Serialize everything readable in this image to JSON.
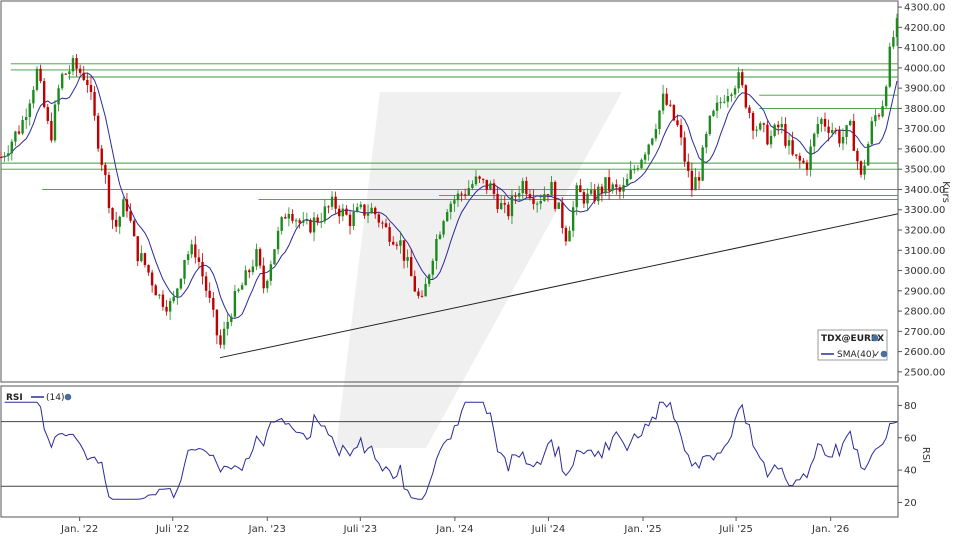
{
  "chart_data": [
    {
      "type": "candlestick",
      "instrument": "TDX@EUREX",
      "ylabel": "Kurs",
      "ylim": [
        2450,
        4330
      ],
      "y_ticks": [
        2500,
        2600,
        2700,
        2800,
        2900,
        3000,
        3100,
        3200,
        3300,
        3400,
        3500,
        3600,
        3700,
        3800,
        3900,
        4000,
        4100,
        4200,
        4300
      ],
      "y_tick_labels": [
        "2500.00",
        "2600.00",
        "2700.00",
        "2800.00",
        "2900.00",
        "3000.00",
        "3100.00",
        "3200.00",
        "3300.00",
        "3400.00",
        "3500.00",
        "3600.00",
        "3700.00",
        "3800.00",
        "3900.00",
        "4000.00",
        "4100.00",
        "4200.00",
        "4300.00"
      ],
      "x_range": [
        "2021-08-01",
        "2026-05-12"
      ],
      "x_ticks": [
        {
          "date": "2022-01-01",
          "label": "Jan. '22"
        },
        {
          "date": "2022-07-01",
          "label": "Juli '22"
        },
        {
          "date": "2023-01-01",
          "label": "Jan. '23"
        },
        {
          "date": "2023-07-01",
          "label": "Juli '23"
        },
        {
          "date": "2024-01-01",
          "label": "Jan. '24"
        },
        {
          "date": "2024-07-01",
          "label": "Juli '24"
        },
        {
          "date": "2025-01-01",
          "label": "Jan. '25"
        },
        {
          "date": "2025-07-01",
          "label": "Juli '25"
        },
        {
          "date": "2026-01-01",
          "label": "Jan. '26"
        }
      ],
      "legend": [
        {
          "name": "TDX@EUREX",
          "color": "#c00000"
        },
        {
          "name": "SMA(40)",
          "color": "#2b2b9a"
        }
      ],
      "legend_position": "bottom-right",
      "price_path": [
        [
          "2021-08-01",
          3560
        ],
        [
          "2021-09-10",
          3720
        ],
        [
          "2021-10-10",
          3980
        ],
        [
          "2021-11-05",
          3650
        ],
        [
          "2021-11-25",
          3950
        ],
        [
          "2021-12-20",
          4010
        ],
        [
          "2022-01-15",
          3950
        ],
        [
          "2022-02-20",
          3450
        ],
        [
          "2022-03-10",
          3200
        ],
        [
          "2022-04-01",
          3350
        ],
        [
          "2022-04-20",
          3100
        ],
        [
          "2022-05-10",
          3020
        ],
        [
          "2022-06-05",
          2870
        ],
        [
          "2022-06-30",
          2820
        ],
        [
          "2022-07-25",
          3080
        ],
        [
          "2022-08-15",
          3100
        ],
        [
          "2022-09-10",
          2850
        ],
        [
          "2022-10-01",
          2620
        ],
        [
          "2022-10-25",
          2830
        ],
        [
          "2022-11-20",
          2960
        ],
        [
          "2022-12-10",
          3080
        ],
        [
          "2022-12-25",
          2920
        ],
        [
          "2023-01-15",
          3120
        ],
        [
          "2023-02-10",
          3320
        ],
        [
          "2023-03-15",
          3200
        ],
        [
          "2023-04-10",
          3260
        ],
        [
          "2023-05-10",
          3330
        ],
        [
          "2023-06-10",
          3250
        ],
        [
          "2023-06-30",
          3290
        ],
        [
          "2023-07-25",
          3300
        ],
        [
          "2023-08-20",
          3200
        ],
        [
          "2023-09-15",
          3150
        ],
        [
          "2023-10-10",
          2950
        ],
        [
          "2023-10-28",
          2820
        ],
        [
          "2023-11-20",
          3100
        ],
        [
          "2023-12-15",
          3320
        ],
        [
          "2024-01-10",
          3370
        ],
        [
          "2024-02-10",
          3440
        ],
        [
          "2024-03-10",
          3410
        ],
        [
          "2024-04-10",
          3270
        ],
        [
          "2024-05-10",
          3440
        ],
        [
          "2024-06-10",
          3350
        ],
        [
          "2024-07-05",
          3420
        ],
        [
          "2024-08-05",
          3170
        ],
        [
          "2024-08-25",
          3380
        ],
        [
          "2024-09-20",
          3350
        ],
        [
          "2024-10-20",
          3420
        ],
        [
          "2024-11-20",
          3380
        ],
        [
          "2024-12-10",
          3480
        ],
        [
          "2025-01-15",
          3650
        ],
        [
          "2025-02-10",
          3850
        ],
        [
          "2025-03-10",
          3700
        ],
        [
          "2025-04-05",
          3400
        ],
        [
          "2025-04-20",
          3480
        ],
        [
          "2025-05-10",
          3720
        ],
        [
          "2025-06-10",
          3880
        ],
        [
          "2025-07-05",
          3950
        ],
        [
          "2025-08-05",
          3720
        ],
        [
          "2025-09-05",
          3650
        ],
        [
          "2025-09-25",
          3720
        ],
        [
          "2025-10-20",
          3550
        ],
        [
          "2025-11-15",
          3520
        ],
        [
          "2025-12-10",
          3750
        ],
        [
          "2026-01-05",
          3700
        ],
        [
          "2026-01-20",
          3650
        ],
        [
          "2026-02-10",
          3700
        ],
        [
          "2026-03-01",
          3450
        ],
        [
          "2026-03-25",
          3750
        ],
        [
          "2026-04-10",
          3800
        ],
        [
          "2026-04-25",
          4050
        ],
        [
          "2026-05-05",
          4180
        ],
        [
          "2026-05-12",
          4210
        ]
      ],
      "horizontal_lines": [
        {
          "value": 4020,
          "from": "2021-08-20"
        },
        {
          "value": 3990,
          "from": "2021-08-20"
        },
        {
          "value": 3955,
          "from": "2021-12-10"
        },
        {
          "value": 3865,
          "from": "2025-08-15"
        },
        {
          "value": 3800,
          "from": "2025-08-15"
        },
        {
          "value": 3530,
          "from": "2021-08-01"
        },
        {
          "value": 3500,
          "from": "2021-08-01"
        },
        {
          "value": 3400,
          "from": "2021-10-20"
        },
        {
          "value": 3370,
          "from": "2023-12-01"
        },
        {
          "value": 3350,
          "from": "2022-12-15"
        }
      ],
      "trendline": {
        "from": [
          "2022-10-01",
          2570
        ],
        "to": [
          "2026-05-12",
          3280
        ]
      }
    },
    {
      "type": "line",
      "name": "RSI",
      "series": [
        {
          "name": "(14)",
          "color": "#2b2b9a"
        }
      ],
      "ylabel": "RSI",
      "ylim": [
        11,
        92
      ],
      "y_ticks": [
        20,
        40,
        60,
        80
      ],
      "reference_lines": [
        30,
        70
      ],
      "legend": [
        "RSI",
        "(14)"
      ],
      "legend_position": "top-left"
    }
  ]
}
